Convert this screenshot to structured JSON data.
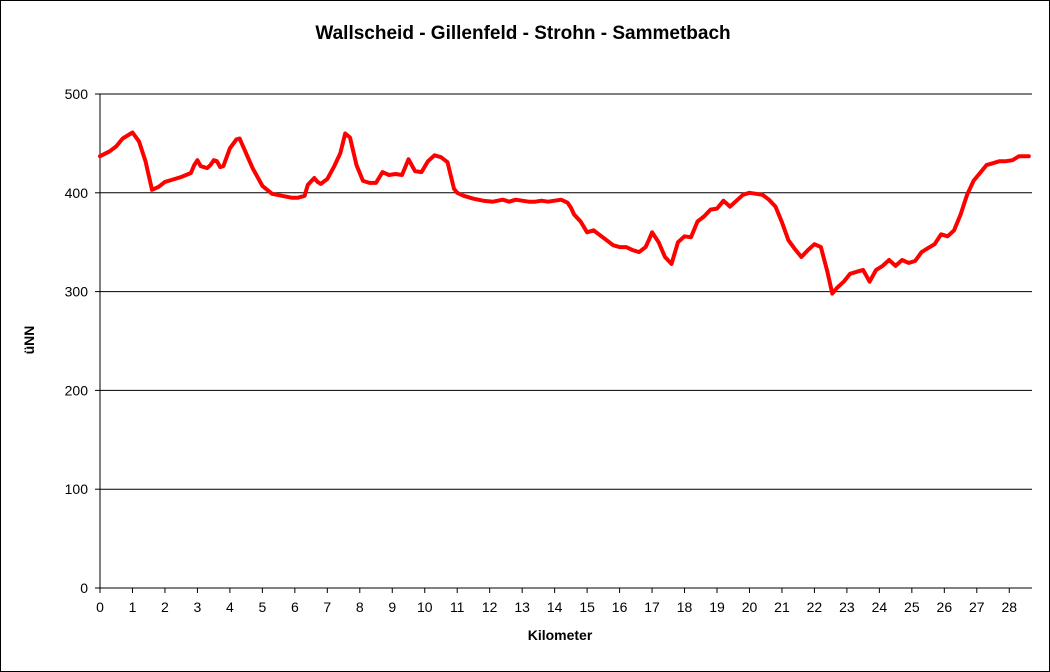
{
  "chart_data": {
    "type": "line",
    "title": "Wallscheid - Gillenfeld  - Strohn - Sammetbach",
    "xlabel": "Kilometer",
    "ylabel": "üNN",
    "xlim": [
      0,
      28.7
    ],
    "ylim": [
      0,
      500
    ],
    "x_ticks": [
      "0",
      "1",
      "2",
      "3",
      "4",
      "5",
      "6",
      "7",
      "8",
      "9",
      "10",
      "11",
      "12",
      "13",
      "14",
      "15",
      "16",
      "17",
      "18",
      "19",
      "20",
      "21",
      "22",
      "23",
      "24",
      "25",
      "26",
      "27",
      "28"
    ],
    "y_ticks": [
      "0",
      "100",
      "200",
      "300",
      "400",
      "500"
    ],
    "grid": "horizontal",
    "legend": "none",
    "line_color": "#ff0000",
    "series": [
      {
        "x": [
          0,
          0.3,
          0.5,
          0.7,
          0.9,
          1.0,
          1.2,
          1.4,
          1.6,
          1.8,
          2.0,
          2.2,
          2.5,
          2.8,
          2.9,
          3.0,
          3.1,
          3.3,
          3.4,
          3.5,
          3.6,
          3.7,
          3.8,
          4.0,
          4.2,
          4.3,
          4.5,
          4.7,
          5.0,
          5.3,
          5.6,
          5.9,
          6.1,
          6.3,
          6.4,
          6.6,
          6.7,
          6.8,
          7.0,
          7.2,
          7.4,
          7.55,
          7.7,
          7.9,
          8.1,
          8.3,
          8.5,
          8.7,
          8.9,
          9.1,
          9.3,
          9.5,
          9.7,
          9.9,
          10.1,
          10.3,
          10.5,
          10.7,
          10.9,
          11.0,
          11.2,
          11.5,
          11.8,
          12.1,
          12.4,
          12.6,
          12.8,
          13.0,
          13.2,
          13.4,
          13.6,
          13.8,
          14.0,
          14.2,
          14.4,
          14.5,
          14.6,
          14.8,
          15.0,
          15.2,
          15.4,
          15.6,
          15.8,
          16.0,
          16.2,
          16.4,
          16.6,
          16.8,
          16.9,
          17.0,
          17.2,
          17.4,
          17.6,
          17.8,
          18.0,
          18.2,
          18.4,
          18.6,
          18.8,
          19.0,
          19.2,
          19.4,
          19.6,
          19.8,
          20.0,
          20.2,
          20.4,
          20.6,
          20.8,
          21.0,
          21.2,
          21.4,
          21.6,
          21.8,
          22.0,
          22.2,
          22.4,
          22.55,
          22.7,
          22.9,
          23.1,
          23.3,
          23.5,
          23.7,
          23.9,
          24.1,
          24.3,
          24.5,
          24.7,
          24.9,
          25.1,
          25.3,
          25.5,
          25.7,
          25.9,
          26.1,
          26.3,
          26.5,
          26.7,
          26.9,
          27.1,
          27.3,
          27.5,
          27.7,
          27.9,
          28.1,
          28.3,
          28.6
        ],
        "y": [
          437,
          442,
          447,
          455,
          459,
          461,
          452,
          432,
          403,
          406,
          411,
          413,
          416,
          420,
          428,
          433,
          427,
          425,
          428,
          433,
          432,
          426,
          427,
          445,
          454,
          455,
          440,
          425,
          407,
          399,
          397,
          395,
          395,
          397,
          408,
          415,
          411,
          409,
          414,
          426,
          440,
          460,
          456,
          428,
          412,
          410,
          410,
          421,
          418,
          419,
          418,
          434,
          422,
          421,
          432,
          438,
          436,
          431,
          404,
          400,
          397,
          394,
          392,
          391,
          393,
          391,
          393,
          392,
          391,
          391,
          392,
          391,
          392,
          393,
          390,
          385,
          378,
          371,
          360,
          362,
          357,
          352,
          347,
          345,
          345,
          342,
          340,
          345,
          352,
          360,
          350,
          335,
          328,
          350,
          356,
          355,
          371,
          376,
          383,
          384,
          392,
          386,
          392,
          398,
          400,
          399,
          398,
          393,
          386,
          370,
          352,
          343,
          335,
          342,
          348,
          345,
          320,
          298,
          304,
          310,
          318,
          320,
          322,
          310,
          322,
          326,
          332,
          326,
          332,
          329,
          331,
          340,
          344,
          348,
          358,
          356,
          362,
          378,
          398,
          412,
          420,
          428,
          430,
          432,
          432,
          433,
          437,
          437
        ]
      }
    ]
  }
}
